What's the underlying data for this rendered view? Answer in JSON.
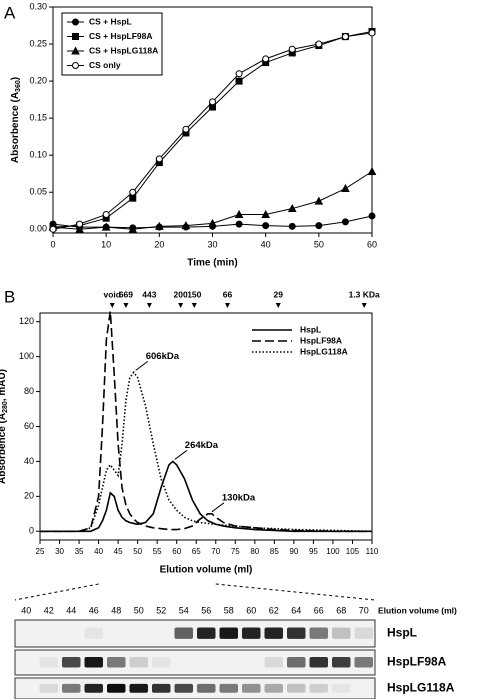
{
  "chart_data": [
    {
      "type": "line",
      "panel": "A",
      "xlabel": "Time (min)",
      "ylabel_parts": [
        "Absorbence (A",
        "360",
        ")"
      ],
      "x": [
        0,
        5,
        10,
        15,
        20,
        25,
        30,
        35,
        40,
        45,
        50,
        55,
        60
      ],
      "xlim": [
        0,
        60
      ],
      "xticks": [
        0,
        10,
        20,
        30,
        40,
        50,
        60
      ],
      "ylim": [
        -0.005,
        0.3
      ],
      "yticks": [
        {
          "value": 0,
          "label": "0.00"
        },
        {
          "value": 0.05,
          "label": "0.05"
        },
        {
          "value": 0.1,
          "label": "0.10"
        },
        {
          "value": 0.15,
          "label": "0.15"
        },
        {
          "value": 0.2,
          "label": "0.20"
        },
        {
          "value": 0.25,
          "label": "0.25"
        },
        {
          "value": 0.3,
          "label": "0.30"
        }
      ],
      "legend": "upper-left",
      "series": [
        {
          "name": "CS + HspL",
          "color": "#000000",
          "marker": "circle-filled",
          "values": [
            0.007,
            0.003,
            0.003,
            0.002,
            0.003,
            0.003,
            0.004,
            0.007,
            0.005,
            0.004,
            0.005,
            0.01,
            0.018
          ]
        },
        {
          "name": "CS + HspLF98A",
          "color": "#000000",
          "marker": "square-filled",
          "values": [
            0.003,
            0.005,
            0.015,
            0.042,
            0.09,
            0.13,
            0.165,
            0.2,
            0.225,
            0.238,
            0.248,
            0.26,
            0.267
          ]
        },
        {
          "name": "CS + HspLG118A",
          "color": "#000000",
          "marker": "triangle-filled",
          "values": [
            0.003,
            0,
            0.003,
            0,
            0.004,
            0.005,
            0.008,
            0.02,
            0.02,
            0.028,
            0.038,
            0.055,
            0.078
          ]
        },
        {
          "name": "CS only",
          "color": "#000000",
          "marker": "circle-open",
          "values": [
            0,
            0.007,
            0.02,
            0.05,
            0.095,
            0.135,
            0.172,
            0.21,
            0.23,
            0.243,
            0.25,
            0.26,
            0.265
          ]
        }
      ]
    },
    {
      "type": "line",
      "panel": "B",
      "xlabel": "Elution volume (ml)",
      "ylabel_parts": [
        "Absorbence (A",
        "280",
        ", mAU)"
      ],
      "x": [
        25,
        30,
        35,
        38,
        40,
        41,
        42,
        43,
        44,
        45,
        46,
        47,
        48,
        49,
        50,
        52,
        54,
        56,
        58,
        59,
        60,
        62,
        64,
        66,
        68,
        69,
        70,
        72,
        75,
        80,
        85,
        90,
        100,
        110
      ],
      "xlim": [
        25,
        110
      ],
      "xticks": [
        25,
        30,
        35,
        40,
        45,
        50,
        55,
        60,
        65,
        70,
        75,
        80,
        85,
        90,
        95,
        100,
        105,
        110
      ],
      "ylim": [
        -5,
        125
      ],
      "yticks": [
        0,
        20,
        40,
        60,
        80,
        100,
        120
      ],
      "legend": "upper-right",
      "series": [
        {
          "name": "HspL",
          "color": "#000000",
          "dash": "solid",
          "values": [
            0,
            0,
            0,
            0,
            2,
            6,
            12,
            22,
            20,
            12,
            8,
            6,
            5,
            4.5,
            4,
            5,
            10,
            25,
            38,
            40,
            38,
            30,
            18,
            10,
            6,
            5,
            4,
            3,
            2,
            1,
            0.5,
            0,
            0,
            0
          ]
        },
        {
          "name": "HspLF98A",
          "color": "#000000",
          "dash": "dashed",
          "values": [
            0,
            0,
            0,
            2,
            20,
            60,
            110,
            126,
            90,
            50,
            25,
            15,
            10,
            7,
            5,
            3,
            2,
            1.5,
            1,
            1,
            1,
            1.5,
            3,
            7,
            10,
            10,
            8,
            5,
            3,
            2,
            1,
            0.5,
            0,
            0
          ]
        },
        {
          "name": "HspLG118A",
          "color": "#000000",
          "dash": "dotted",
          "values": [
            0,
            0,
            0,
            2,
            15,
            25,
            35,
            38,
            35,
            32,
            50,
            75,
            88,
            91,
            88,
            72,
            50,
            30,
            18,
            15,
            12,
            8,
            6,
            5,
            4.5,
            4.2,
            4,
            3.5,
            3,
            2,
            1.5,
            1,
            0.5,
            0
          ]
        }
      ],
      "markers": {
        "x": [
          43.5,
          47,
          53,
          61,
          64.5,
          73,
          86,
          108
        ],
        "labels": [
          "void",
          "669",
          "443",
          "200",
          "150",
          "66",
          "29",
          "1.3 KDa"
        ]
      },
      "annotations": [
        {
          "text": "606kDa",
          "x": 49,
          "y": 91
        },
        {
          "text": "264kDa",
          "x": 59,
          "y": 40
        },
        {
          "text": "130kDa",
          "x": 68.5,
          "y": 10
        }
      ]
    }
  ],
  "panel_labels": [
    "A",
    "B"
  ],
  "gel": {
    "axis_label": "Elution volume (ml)",
    "lanes": [
      40,
      42,
      44,
      46,
      48,
      50,
      52,
      54,
      56,
      58,
      60,
      62,
      64,
      66,
      68,
      70
    ],
    "rows": [
      {
        "name": "HspL",
        "intensities": [
          0,
          0,
          0,
          0.05,
          0,
          0,
          0,
          0.6,
          0.85,
          0.9,
          0.85,
          0.85,
          0.8,
          0.5,
          0.2,
          0.1
        ]
      },
      {
        "name": "HspLF98A",
        "intensities": [
          0,
          0.05,
          0.7,
          0.9,
          0.5,
          0.15,
          0.05,
          0,
          0,
          0,
          0,
          0.1,
          0.55,
          0.8,
          0.75,
          0.5
        ]
      },
      {
        "name": "HspLG118A",
        "intensities": [
          0,
          0.1,
          0.5,
          0.85,
          0.95,
          0.9,
          0.8,
          0.7,
          0.55,
          0.5,
          0.4,
          0.3,
          0.2,
          0.15,
          0.05,
          0
        ]
      }
    ]
  }
}
